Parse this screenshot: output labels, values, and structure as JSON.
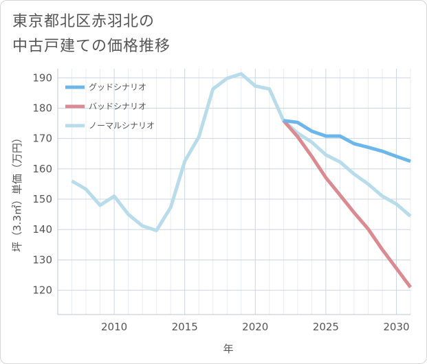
{
  "chart_data": {
    "type": "line",
    "title_lines": [
      "東京都北区赤羽北の",
      "中古戸建ての価格推移"
    ],
    "xlabel": "年",
    "ylabel": "坪（3.3㎡）単価（万円）",
    "xlim": [
      2006,
      2031
    ],
    "ylim": [
      112,
      193
    ],
    "x_ticks": [
      2010,
      2015,
      2020,
      2025,
      2030
    ],
    "y_ticks": [
      120,
      130,
      140,
      150,
      160,
      170,
      180,
      190
    ],
    "grid": true,
    "legend_position": "top-left",
    "series": [
      {
        "name": "グッドシナリオ",
        "color": "#6cb6ea",
        "x": [
          2022,
          2023,
          2024,
          2025,
          2026,
          2027,
          2028,
          2029,
          2030,
          2031
        ],
        "y": [
          175.9,
          175.3,
          172.4,
          170.8,
          170.8,
          168.3,
          167.1,
          165.8,
          164.1,
          162.5
        ]
      },
      {
        "name": "バッドシナリオ",
        "color": "#dc8a92",
        "x": [
          2022,
          2023,
          2024,
          2025,
          2026,
          2027,
          2028,
          2029,
          2030,
          2031
        ],
        "y": [
          175.9,
          170.6,
          164.1,
          157.1,
          151.4,
          145.6,
          140.2,
          133.4,
          127.2,
          121.0
        ]
      },
      {
        "name": "ノーマルシナリオ",
        "color": "#b8dcea",
        "x": [
          2007,
          2008,
          2009,
          2010,
          2011,
          2012,
          2013,
          2014,
          2015,
          2016,
          2017,
          2018,
          2019,
          2020,
          2021,
          2022,
          2023,
          2024,
          2025,
          2026,
          2027,
          2028,
          2029,
          2030,
          2031
        ],
        "y": [
          156.0,
          153.3,
          148.0,
          151.0,
          145.0,
          141.2,
          139.7,
          147.3,
          162.5,
          170.5,
          186.3,
          189.8,
          191.3,
          187.3,
          186.3,
          175.9,
          171.8,
          168.8,
          164.6,
          162.3,
          158.3,
          155.0,
          151.0,
          148.4,
          144.4
        ]
      }
    ]
  }
}
